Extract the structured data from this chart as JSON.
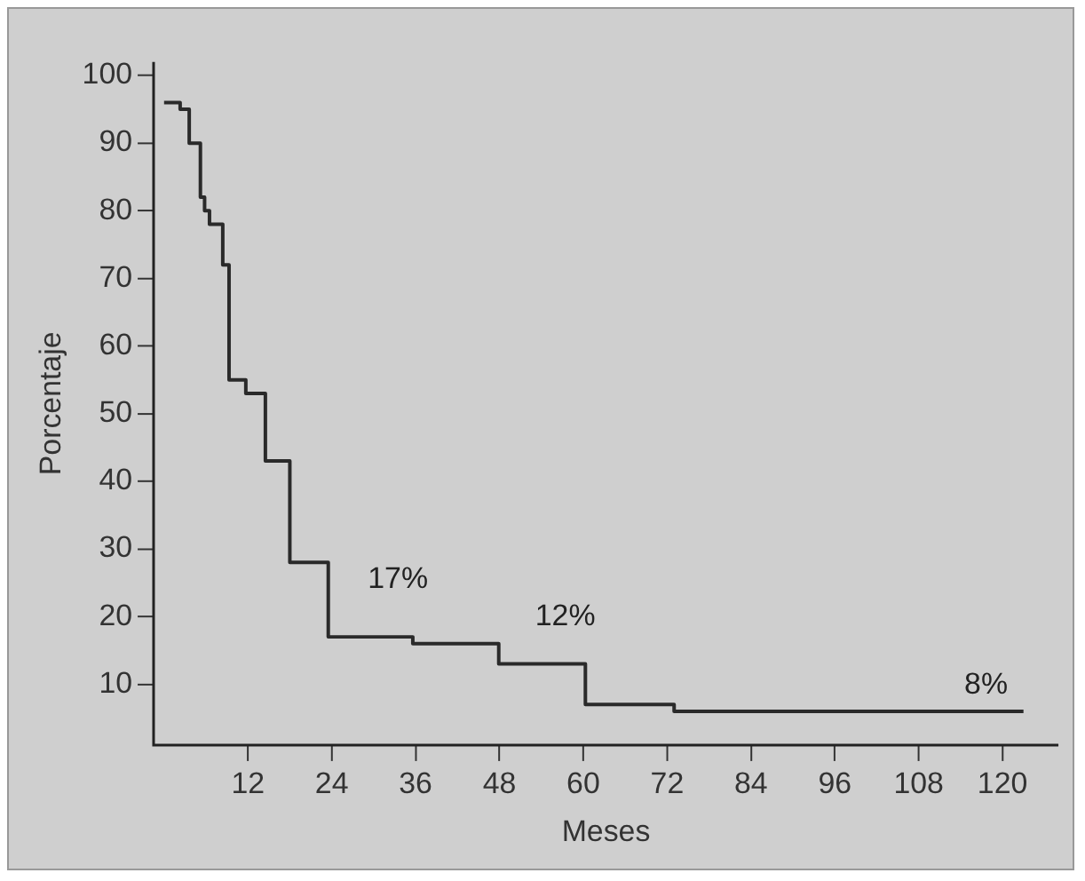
{
  "chart_data": {
    "type": "step",
    "xlabel": "Meses",
    "ylabel": "Porcentaje",
    "x": [
      0,
      2.3,
      3.6,
      5.2,
      5.8,
      6.5,
      8.4,
      9.3,
      11.7,
      14.5,
      18,
      23.5,
      35.6,
      47.9,
      60.3,
      73,
      123
    ],
    "series": [
      {
        "color": "#2a2a2a",
        "values": [
          96,
          95,
          90,
          82,
          80,
          78,
          72,
          55,
          53,
          43,
          28,
          17,
          16,
          13,
          7,
          6,
          6
        ]
      }
    ],
    "xlim": [
      -1.5,
      128
    ],
    "ylim": [
      1,
      102
    ],
    "xticks": [
      12,
      24,
      36,
      48,
      60,
      72,
      84,
      96,
      108,
      120
    ],
    "yticks": [
      10,
      20,
      30,
      40,
      50,
      60,
      70,
      80,
      90,
      100
    ],
    "annotations": [
      "17%",
      "12%",
      "8%"
    ],
    "grid": false,
    "legend": false,
    "marker": "none",
    "line_style": "solid"
  }
}
